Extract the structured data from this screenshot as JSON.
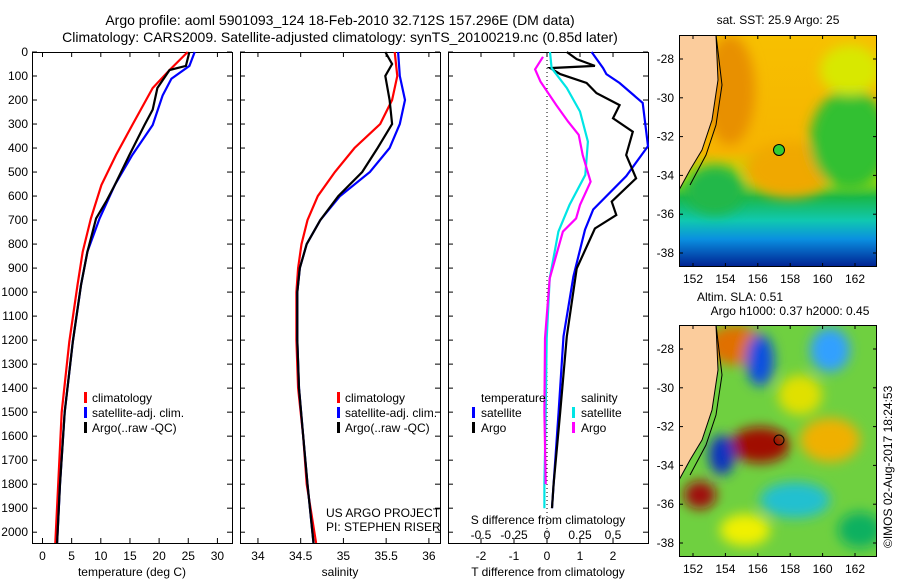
{
  "header": {
    "title_line1": "Argo profile: aoml 5901093_124 18-Feb-2010 32.712S 157.296E (DM data)",
    "title_line2": "Climatology: CARS2009. Satellite-adjusted climatology: synTS_20100219.nc (0.85d later)"
  },
  "colors": {
    "climatology": "#ff0000",
    "satellite": "#0000ff",
    "argo": "#000000",
    "sal_satellite": "#00e5e5",
    "sal_argo": "#ff00ff"
  },
  "chart_data": [
    {
      "type": "line",
      "xlabel": "temperature (deg C)",
      "ylabel": "",
      "xlim": [
        -1.8,
        32.5
      ],
      "ylim": [
        2045,
        0
      ],
      "xticks": [
        "0",
        "5",
        "10",
        "15",
        "20",
        "25",
        "30"
      ],
      "yticks": [
        "0",
        "100",
        "200",
        "300",
        "400",
        "500",
        "600",
        "700",
        "800",
        "900",
        "1000",
        "1100",
        "1200",
        "1300",
        "1400",
        "1500",
        "1600",
        "1700",
        "1800",
        "1900",
        "2000"
      ],
      "legend": [
        "climatology",
        "satellite-adj. clim.",
        "Argo(..raw -QC)"
      ],
      "series": [
        {
          "name": "climatology",
          "color": "#ff0000",
          "depth": [
            0,
            75,
            150,
            304,
            429,
            554,
            693,
            832,
            971,
            1207,
            1500,
            1800,
            2045
          ],
          "values": [
            24.9,
            21.8,
            18.9,
            15.4,
            12.6,
            10.1,
            8.3,
            6.9,
            6.0,
            4.6,
            3.3,
            2.7,
            2.2
          ]
        },
        {
          "name": "satellite-adj. clim.",
          "color": "#0000ff",
          "depth": [
            0,
            58,
            111,
            181,
            304,
            429,
            554,
            693,
            832,
            971,
            1207,
            1500,
            1800,
            2045
          ],
          "values": [
            26.1,
            25.2,
            22.1,
            20.6,
            18.9,
            15.4,
            12.4,
            9.8,
            7.7,
            6.6,
            5.2,
            3.8,
            3.0,
            2.5
          ]
        },
        {
          "name": "Argo(..raw -QC)",
          "color": "#000000",
          "depth": [
            0,
            58,
            75,
            150,
            240,
            304,
            429,
            554,
            623,
            693,
            832,
            971,
            1207,
            1500,
            1800,
            2045
          ],
          "values": [
            25.2,
            24.6,
            21.8,
            19.7,
            18.9,
            17.5,
            14.9,
            12.4,
            10.9,
            9.2,
            7.7,
            6.6,
            5.2,
            3.8,
            3.0,
            2.5
          ]
        }
      ]
    },
    {
      "type": "line",
      "xlabel": "salinity",
      "xlim": [
        33.79,
        36.13
      ],
      "ylim": [
        2045,
        0
      ],
      "xticks": [
        "34",
        "34.5",
        "35",
        "35.5",
        "36"
      ],
      "legend": [
        "climatology",
        "satellite-adj. clim.",
        "Argo(..raw -QC)"
      ],
      "annotation": [
        "US ARGO PROJECT",
        "PI: STEPHEN RISER"
      ],
      "series": [
        {
          "name": "climatology",
          "color": "#ff0000",
          "depth": [
            0,
            100,
            200,
            300,
            400,
            500,
            600,
            700,
            800,
            900,
            1000,
            1200,
            1400,
            1600,
            1800,
            2045
          ],
          "values": [
            35.6,
            35.63,
            35.57,
            35.43,
            35.13,
            34.9,
            34.7,
            34.58,
            34.51,
            34.47,
            34.45,
            34.45,
            34.47,
            34.53,
            34.57,
            34.68
          ]
        },
        {
          "name": "satellite-adj. clim.",
          "color": "#0000ff",
          "depth": [
            0,
            100,
            200,
            300,
            400,
            500,
            600,
            700,
            800,
            900,
            1000,
            1200,
            1400,
            1600,
            1800,
            2045
          ],
          "values": [
            35.64,
            35.66,
            35.72,
            35.66,
            35.54,
            35.31,
            34.96,
            34.73,
            34.57,
            34.49,
            34.46,
            34.46,
            34.48,
            34.53,
            34.58,
            34.65
          ]
        },
        {
          "name": "Argo(..raw -QC)",
          "color": "#000000",
          "depth": [
            0,
            50,
            100,
            200,
            300,
            400,
            500,
            600,
            700,
            800,
            900,
            1000,
            1200,
            1400,
            1600,
            1800,
            2045
          ],
          "values": [
            35.49,
            35.57,
            35.49,
            35.54,
            35.57,
            35.4,
            35.22,
            34.94,
            34.73,
            34.57,
            34.49,
            34.46,
            34.46,
            34.48,
            34.53,
            34.58,
            34.65
          ]
        }
      ]
    },
    {
      "type": "line",
      "xlabel": "T difference from climatology",
      "xlabel2": "S difference from climatology",
      "xlim": [
        -3.0,
        3.06
      ],
      "ylim": [
        2045,
        0
      ],
      "xticks": [
        "-2",
        "-1",
        "0",
        "1",
        "2"
      ],
      "xticks_values": [
        -2,
        -1,
        0,
        1,
        2
      ],
      "xticks2": [
        "-0.5",
        "-0.25",
        "0",
        "0.25",
        "0.5"
      ],
      "xticks2_values": [
        -0.5,
        -0.25,
        0,
        0.25,
        0.5
      ],
      "legend_temperature": {
        "title": "temperature",
        "items": [
          "satellite",
          "Argo"
        ]
      },
      "legend_salinity": {
        "title": "salinity",
        "items": [
          "satellite",
          "Argo"
        ]
      },
      "series": [
        {
          "name": "temperature satellite",
          "axis": "T",
          "color": "#0000ff",
          "depth": [
            0,
            67,
            92,
            129,
            212,
            392,
            517,
            656,
            740,
            935,
            1185,
            1500,
            1800,
            1900
          ],
          "values": [
            1.35,
            1.7,
            1.8,
            2.2,
            2.9,
            3.06,
            2.4,
            1.4,
            1.15,
            0.8,
            0.5,
            0.35,
            0.2,
            0.15
          ]
        },
        {
          "name": "temperature Argo",
          "axis": "T",
          "color": "#000000",
          "depth": [
            0,
            30,
            58,
            67,
            92,
            129,
            171,
            221,
            276,
            332,
            429,
            526,
            623,
            679,
            735,
            902,
            1185,
            1500,
            1800,
            1900
          ],
          "values": [
            0.6,
            0.9,
            1.45,
            0.1,
            0.4,
            1.2,
            1.5,
            2.2,
            2.0,
            2.6,
            2.4,
            2.7,
            1.96,
            2.1,
            1.45,
            0.9,
            0.6,
            0.4,
            0.2,
            0.15
          ]
        },
        {
          "name": "salinity satellite",
          "axis": "S",
          "color": "#00e5e5",
          "depth": [
            0,
            67,
            150,
            248,
            373,
            512,
            637,
            748,
            943,
            1193,
            1500,
            1800,
            1900
          ],
          "values": [
            0.023,
            0.035,
            0.15,
            0.25,
            0.31,
            0.29,
            0.17,
            0.086,
            0.02,
            -0.002,
            -0.01,
            -0.02,
            -0.02
          ]
        },
        {
          "name": "salinity Argo",
          "axis": "S",
          "color": "#ff00ff",
          "depth": [
            20,
            72,
            123,
            221,
            290,
            345,
            429,
            540,
            637,
            693,
            748,
            943,
            1193,
            1500,
            1800
          ],
          "values": [
            -0.03,
            -0.09,
            -0.05,
            0.07,
            0.16,
            0.24,
            0.27,
            0.33,
            0.25,
            0.22,
            0.12,
            0.02,
            -0.015,
            -0.02,
            -0.01
          ]
        }
      ]
    }
  ],
  "maps": {
    "sst_title": "sat. SST: 25.9 Argo: 25",
    "sla_title1": "Altim. SLA: 0.51",
    "sla_title2": "Argo h1000: 0.37 h2000: 0.45",
    "lon_ticks": [
      "152",
      "154",
      "156",
      "158",
      "160",
      "162"
    ],
    "lat_ticks": [
      "-28",
      "-30",
      "-32",
      "-34",
      "-36",
      "-38"
    ],
    "argo_position": {
      "lon": 157.296,
      "lat": -32.712
    }
  },
  "credit": "©IMOS 02-Aug-2017 18:24:53"
}
